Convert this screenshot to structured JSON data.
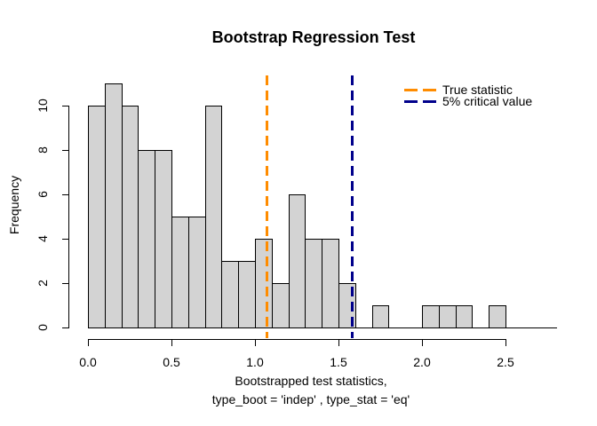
{
  "chart_data": {
    "type": "bar",
    "subtype": "histogram",
    "title": "Bootstrap Regression Test",
    "ylabel": "Frequency",
    "xlabel_lines": [
      "Bootstrapped test statistics,",
      "type_boot = 'indep' , type_stat = 'eq'"
    ],
    "bins": {
      "start": 0,
      "width": 0.1,
      "counts": [
        10,
        11,
        10,
        8,
        8,
        5,
        5,
        10,
        3,
        3,
        4,
        2,
        6,
        4,
        4,
        2,
        0,
        1,
        0,
        0,
        1,
        1,
        1,
        0,
        1
      ]
    },
    "x_ticks": [
      {
        "value": 0,
        "label": "0.0"
      },
      {
        "value": 0.5,
        "label": "0.5"
      },
      {
        "value": 1,
        "label": "1.0"
      },
      {
        "value": 1.5,
        "label": "1.5"
      },
      {
        "value": 2,
        "label": "2.0"
      },
      {
        "value": 2.5,
        "label": "2.5"
      }
    ],
    "y_ticks": [
      {
        "value": 0,
        "label": "0"
      },
      {
        "value": 2,
        "label": "2"
      },
      {
        "value": 4,
        "label": "4"
      },
      {
        "value": 6,
        "label": "6"
      },
      {
        "value": 8,
        "label": "8"
      },
      {
        "value": 10,
        "label": "10"
      }
    ],
    "xlim": [
      0,
      2.81
    ],
    "ylim": [
      0,
      11
    ],
    "grid": false,
    "bar_fill": "#d3d3d3",
    "bar_border": "#000000",
    "axis_color": "#000000",
    "vlines": [
      {
        "name": "true-statistic",
        "x": 1.07,
        "color": "#ff8c00",
        "style": "dashed"
      },
      {
        "name": "critical-value-5pct",
        "x": 1.58,
        "color": "#00008b",
        "style": "dashed"
      }
    ],
    "legend": {
      "position": "top-right",
      "entries": [
        {
          "label": "True statistic",
          "color": "#ff8c00",
          "line_style": "dashed"
        },
        {
          "label": "5% critical value",
          "color": "#00008b",
          "line_style": "dashed"
        }
      ]
    }
  }
}
